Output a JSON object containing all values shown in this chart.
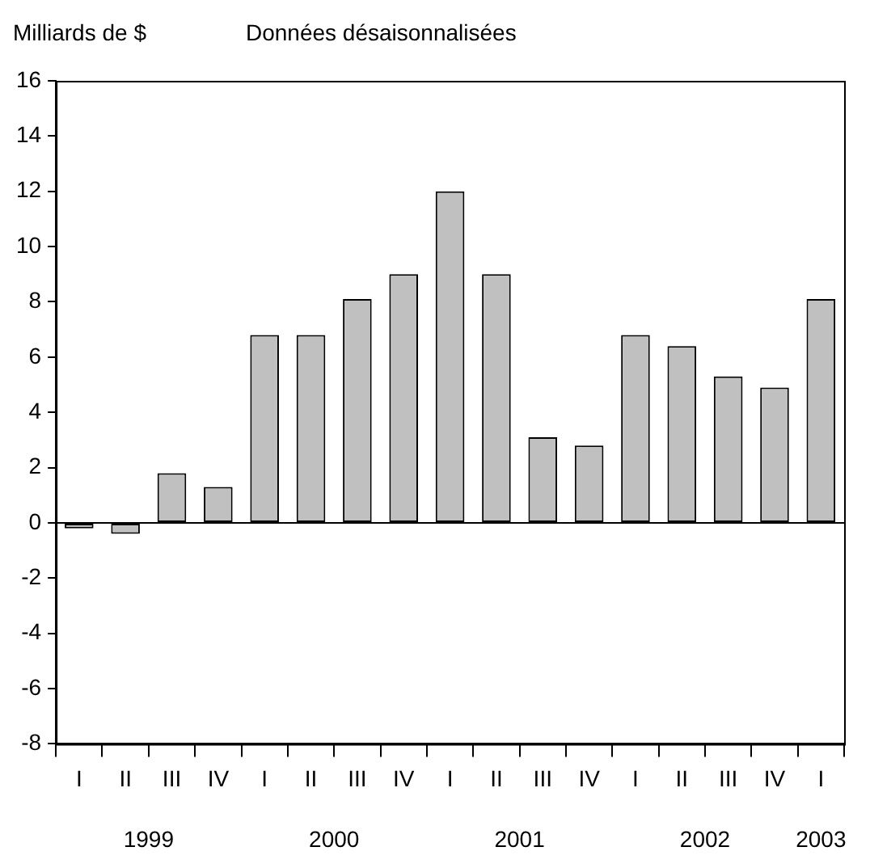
{
  "chart_data": {
    "type": "bar",
    "title": "Données désaisonnalisées",
    "ylabel": "Milliards de $",
    "categories": [
      "I",
      "II",
      "III",
      "IV",
      "I",
      "II",
      "III",
      "IV",
      "I",
      "II",
      "III",
      "IV",
      "I",
      "II",
      "III",
      "IV",
      "I"
    ],
    "values": [
      -0.2,
      -0.4,
      1.8,
      1.3,
      6.8,
      6.8,
      8.1,
      9.0,
      12.0,
      9.0,
      3.1,
      2.8,
      6.8,
      6.4,
      5.3,
      4.9,
      8.1
    ],
    "color": "#c0c0c0",
    "ylim": [
      -8,
      16
    ],
    "yticks": [
      -8,
      -6,
      -4,
      -2,
      0,
      2,
      4,
      6,
      8,
      10,
      12,
      14,
      16
    ],
    "annotations": [
      "1999",
      "2000",
      "2001",
      "2002",
      "2003"
    ],
    "legend": false
  }
}
